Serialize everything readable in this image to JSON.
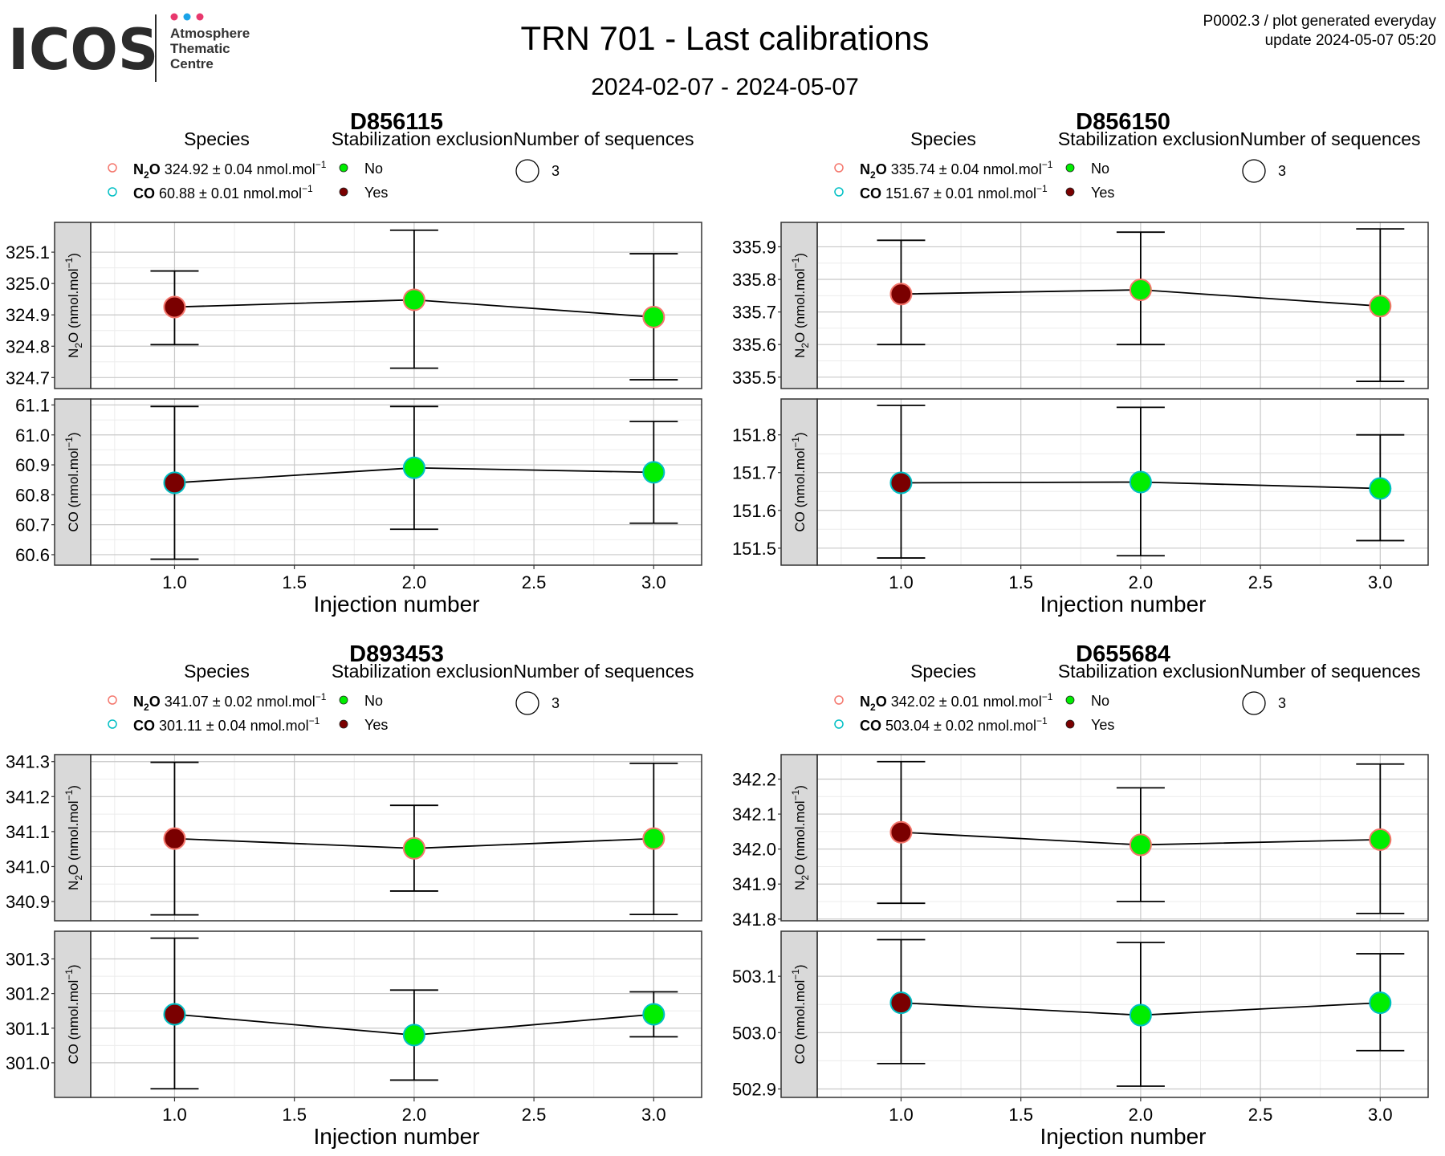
{
  "header": {
    "logo_text": "ICOS",
    "logo_subtitle": [
      "Atmosphere",
      "Thematic",
      "Centre"
    ],
    "logo_dot_colors": [
      "#e8386d",
      "#1aa3e8",
      "#e8386d"
    ],
    "title": "TRN 701 - Last calibrations",
    "date_range": "2024-02-07 - 2024-05-07",
    "top_right_line1": "P0002.3 / plot generated everyday",
    "top_right_line2": "update  2024-05-07 05:20"
  },
  "legend_titles": {
    "species": "Species",
    "stabilization": "Stabilization exclusion",
    "sequences": "Number of sequences"
  },
  "legend_values": {
    "no": "No",
    "yes": "Yes",
    "sequences_count": "3",
    "unit": "nmol.mol",
    "unit_exp": "−1"
  },
  "colors": {
    "excluded_yes": "#7a0000",
    "excluded_no": "#00ee00",
    "n2o_outline": "#f4766c",
    "co_outline": "#00bfc4",
    "strip_bg": "#d9d9d9",
    "grid_major": "#c8c8c8",
    "grid_minor": "#ececec"
  },
  "axis": {
    "xlabel": "Injection number",
    "x_ticks": [
      "1.0",
      "1.5",
      "2.0",
      "2.5",
      "3.0"
    ],
    "n2o_label": "N",
    "n2o_sub": "2",
    "n2o_label_rest": "O (nmol.mol",
    "co_label": "CO (nmol.mol",
    "label_exp": "−1",
    "label_close": ")"
  },
  "chart_data": [
    {
      "type": "scatter",
      "cylinder": "D856115",
      "legend": {
        "n2o": {
          "name": "N",
          "sub": "2",
          "rest": "O",
          "value": "324.92",
          "pm": "±",
          "unc": "0.04"
        },
        "co": {
          "name": "CO",
          "value": "60.88",
          "pm": "±",
          "unc": "0.01"
        }
      },
      "x": [
        1,
        2,
        3
      ],
      "xlim": [
        0.65,
        3.2
      ],
      "n2o": {
        "y": [
          324.925,
          324.948,
          324.893
        ],
        "err_low": [
          324.805,
          324.73,
          324.693
        ],
        "err_high": [
          325.04,
          325.17,
          325.095
        ],
        "excluded": [
          true,
          false,
          false
        ],
        "ylim": [
          324.665,
          325.195
        ],
        "yticks": [
          324.7,
          324.8,
          324.9,
          325.0,
          325.1
        ],
        "ytick_labels": [
          "324.7",
          "324.8",
          "324.9",
          "325.0",
          "325.1"
        ]
      },
      "co": {
        "y": [
          60.84,
          60.89,
          60.875
        ],
        "err_low": [
          60.585,
          60.685,
          60.705
        ],
        "err_high": [
          61.095,
          61.095,
          61.045
        ],
        "excluded": [
          true,
          false,
          false
        ],
        "ylim": [
          60.565,
          61.12
        ],
        "yticks": [
          60.6,
          60.7,
          60.8,
          60.9,
          61.0,
          61.1
        ],
        "ytick_labels": [
          "60.6",
          "60.7",
          "60.8",
          "60.9",
          "61.0",
          "61.1"
        ]
      }
    },
    {
      "type": "scatter",
      "cylinder": "D856150",
      "legend": {
        "n2o": {
          "name": "N",
          "sub": "2",
          "rest": "O",
          "value": "335.74",
          "pm": "±",
          "unc": "0.04"
        },
        "co": {
          "name": "CO",
          "value": "151.67",
          "pm": "±",
          "unc": "0.01"
        }
      },
      "x": [
        1,
        2,
        3
      ],
      "xlim": [
        0.65,
        3.2
      ],
      "n2o": {
        "y": [
          335.755,
          335.768,
          335.718
        ],
        "err_low": [
          335.6,
          335.6,
          335.487
        ],
        "err_high": [
          335.92,
          335.945,
          335.955
        ],
        "excluded": [
          true,
          false,
          false
        ],
        "ylim": [
          335.465,
          335.975
        ],
        "yticks": [
          335.5,
          335.6,
          335.7,
          335.8,
          335.9
        ],
        "ytick_labels": [
          "335.5",
          "335.6",
          "335.7",
          "335.8",
          "335.9"
        ]
      },
      "co": {
        "y": [
          151.673,
          151.675,
          151.658
        ],
        "err_low": [
          151.474,
          151.48,
          151.52
        ],
        "err_high": [
          151.878,
          151.873,
          151.8
        ],
        "excluded": [
          true,
          false,
          false
        ],
        "ylim": [
          151.455,
          151.895
        ],
        "yticks": [
          151.5,
          151.6,
          151.7,
          151.8
        ],
        "ytick_labels": [
          "151.5",
          "151.6",
          "151.7",
          "151.8"
        ]
      }
    },
    {
      "type": "scatter",
      "cylinder": "D893453",
      "legend": {
        "n2o": {
          "name": "N",
          "sub": "2",
          "rest": "O",
          "value": "341.07",
          "pm": "±",
          "unc": "0.02"
        },
        "co": {
          "name": "CO",
          "value": "301.11",
          "pm": "±",
          "unc": "0.04"
        }
      },
      "x": [
        1,
        2,
        3
      ],
      "xlim": [
        0.65,
        3.2
      ],
      "n2o": {
        "y": [
          341.08,
          341.052,
          341.08
        ],
        "err_low": [
          340.862,
          340.93,
          340.863
        ],
        "err_high": [
          341.298,
          341.175,
          341.295
        ],
        "excluded": [
          true,
          false,
          false
        ],
        "ylim": [
          340.845,
          341.32
        ],
        "yticks": [
          340.9,
          341.0,
          341.1,
          341.2,
          341.3
        ],
        "ytick_labels": [
          "340.9",
          "341.0",
          "341.1",
          "341.2",
          "341.3"
        ]
      },
      "co": {
        "y": [
          301.14,
          301.08,
          301.14
        ],
        "err_low": [
          300.925,
          300.95,
          301.075
        ],
        "err_high": [
          301.36,
          301.21,
          301.205
        ],
        "excluded": [
          true,
          false,
          false
        ],
        "ylim": [
          300.9,
          301.38
        ],
        "yticks": [
          301.0,
          301.1,
          301.2,
          301.3
        ],
        "ytick_labels": [
          "301.0",
          "301.1",
          "301.2",
          "301.3"
        ]
      }
    },
    {
      "type": "scatter",
      "cylinder": "D655684",
      "legend": {
        "n2o": {
          "name": "N",
          "sub": "2",
          "rest": "O",
          "value": "342.02",
          "pm": "±",
          "unc": "0.01"
        },
        "co": {
          "name": "CO",
          "value": "503.04",
          "pm": "±",
          "unc": "0.02"
        }
      },
      "x": [
        1,
        2,
        3
      ],
      "xlim": [
        0.65,
        3.2
      ],
      "n2o": {
        "y": [
          342.048,
          342.012,
          342.027
        ],
        "err_low": [
          341.845,
          341.85,
          341.816
        ],
        "err_high": [
          342.25,
          342.175,
          342.243
        ],
        "excluded": [
          true,
          false,
          false
        ],
        "ylim": [
          341.795,
          342.27
        ],
        "yticks": [
          341.8,
          341.9,
          342.0,
          342.1,
          342.2
        ],
        "ytick_labels": [
          "341.8",
          "341.9",
          "342.0",
          "342.1",
          "342.2"
        ]
      },
      "co": {
        "y": [
          503.053,
          503.031,
          503.053
        ],
        "err_low": [
          502.945,
          502.905,
          502.968
        ],
        "err_high": [
          503.165,
          503.16,
          503.14
        ],
        "excluded": [
          true,
          false,
          false
        ],
        "ylim": [
          502.885,
          503.18
        ],
        "yticks": [
          502.9,
          503.0,
          503.1
        ],
        "ytick_labels": [
          "502.9",
          "503.0",
          "503.1"
        ]
      }
    }
  ]
}
